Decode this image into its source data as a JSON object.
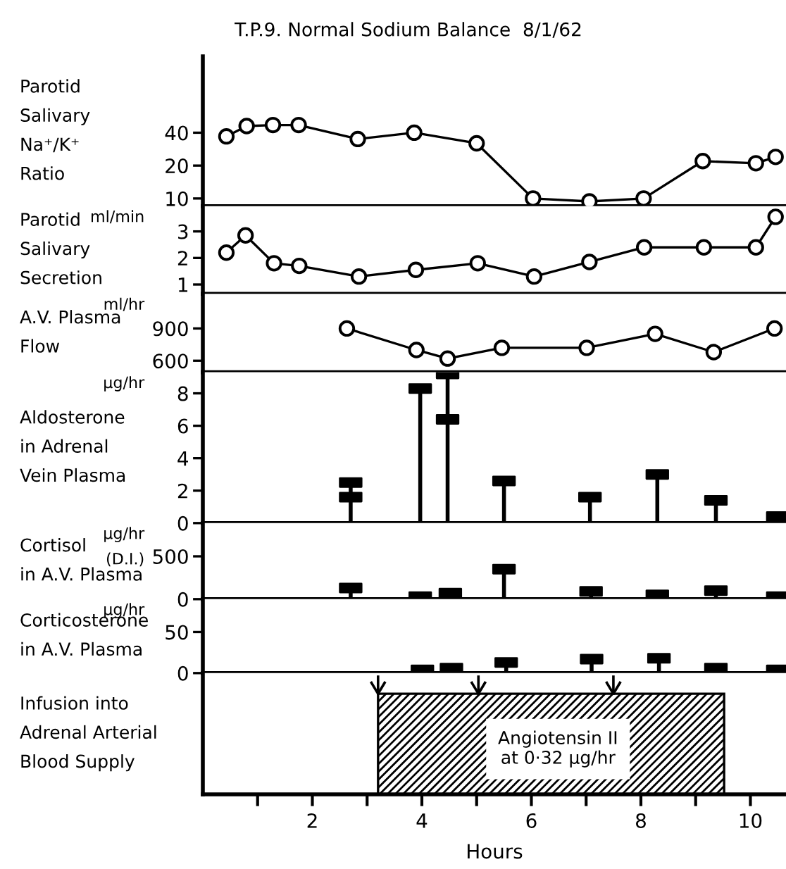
{
  "chart_data": [
    {
      "type": "line",
      "title": "T.P.9. Normal Sodium Balance  8/1/62",
      "ylabel": "Parotid\nSalivary\nNa⁺/K⁺\nRatio",
      "log": true,
      "xlim": [
        0,
        10.65
      ],
      "ylim": [
        8.5,
        200
      ],
      "yticks": [
        10,
        20,
        40
      ],
      "tick_labels": "y",
      "marker": "circle",
      "x": [
        0.43,
        0.8,
        1.28,
        1.75,
        2.83,
        3.86,
        5.0,
        6.03,
        7.06,
        8.05,
        9.13,
        10.1,
        10.46
      ],
      "series": [
        {
          "color": "#000000",
          "values": [
            37,
            46,
            47,
            47,
            35,
            40,
            32,
            10,
            9.4,
            10,
            22,
            21,
            24
          ]
        }
      ]
    },
    {
      "type": "line",
      "ylabel": "Parotid\nSalivary\nSecretion",
      "annotations": [
        "ml/min"
      ],
      "xlim": [
        0,
        10.65
      ],
      "ylim": [
        0.65,
        3.95
      ],
      "yticks": [
        1,
        2,
        3
      ],
      "tick_labels": "y",
      "marker": "circle",
      "x": [
        0.43,
        0.78,
        1.3,
        1.76,
        2.85,
        3.89,
        5.02,
        6.05,
        7.06,
        8.06,
        9.15,
        10.1,
        10.46
      ],
      "series": [
        {
          "color": "#000000",
          "values": [
            2.2,
            2.85,
            1.8,
            1.7,
            1.3,
            1.55,
            1.8,
            1.3,
            1.85,
            2.4,
            2.4,
            2.4,
            3.55
          ]
        }
      ]
    },
    {
      "type": "line",
      "ylabel": "A.V. Plasma\nFlow",
      "annotations": [
        "ml/hr"
      ],
      "xlim": [
        0,
        10.65
      ],
      "ylim": [
        493,
        1222
      ],
      "yticks": [
        600,
        900
      ],
      "tick_labels": "y",
      "marker": "circle",
      "x": [
        2.63,
        3.9,
        4.47,
        5.46,
        7.01,
        8.26,
        9.33,
        10.44
      ],
      "series": [
        {
          "color": "#000000",
          "values": [
            900,
            700,
            620,
            720,
            720,
            850,
            680,
            900
          ]
        }
      ]
    },
    {
      "type": "lollipop",
      "ylabel": "Aldosterone\nin Adrenal\nVein Plasma",
      "annotations": [
        "µg/hr"
      ],
      "xlim": [
        0,
        10.65
      ],
      "ylim": [
        0,
        9.3
      ],
      "yticks": [
        0,
        2,
        4,
        6,
        8
      ],
      "tick_labels": "y",
      "marker": "square",
      "x": [
        2.7,
        3.97,
        4.47,
        5.5,
        7.07,
        8.3,
        9.37,
        10.5
      ],
      "series": [
        {
          "color": "#000000",
          "values": [
            2.5,
            8.3,
            9.2,
            2.6,
            1.6,
            3.0,
            1.4,
            0.4
          ]
        },
        {
          "color": "#000000",
          "values": [
            1.6,
            null,
            6.4,
            null,
            null,
            null,
            null,
            null
          ]
        }
      ]
    },
    {
      "type": "lollipop",
      "ylabel": "Cortisol\nin A.V. Plasma",
      "annotations": [
        "µg/hr",
        "(D.I.)"
      ],
      "xlim": [
        0,
        10.65
      ],
      "ylim": [
        0,
        888
      ],
      "yticks": [
        0,
        500
      ],
      "tick_labels": "y",
      "marker": "square",
      "x": [
        2.7,
        3.97,
        4.52,
        5.5,
        7.09,
        8.3,
        9.37,
        10.5
      ],
      "series": [
        {
          "color": "#000000",
          "values": [
            130,
            30,
            70,
            350,
            90,
            50,
            100,
            30
          ]
        }
      ]
    },
    {
      "type": "lollipop",
      "ylabel": "Corticosterone\nin A.V. Plasma",
      "annotations": [
        "µg/hr"
      ],
      "xlim": [
        0,
        10.65
      ],
      "ylim": [
        0,
        90
      ],
      "yticks": [
        0,
        50
      ],
      "tick_labels": "y",
      "marker": "square",
      "x": [
        4.01,
        4.54,
        5.54,
        7.1,
        8.33,
        9.37,
        10.5
      ],
      "series": [
        {
          "color": "#000000",
          "values": [
            4,
            6,
            13,
            17,
            18,
            6,
            4
          ]
        }
      ]
    },
    {
      "type": "bar",
      "orientation": "horizontal",
      "categories": [
        null
      ],
      "ylabel": "Infusion into\nAdrenal Arterial\nBlood Supply",
      "xlabel": "Hours",
      "xlim": [
        0,
        10.65
      ],
      "xticks": [
        {
          "value": 1,
          "label": null
        },
        2,
        {
          "value": 3,
          "label": null
        },
        4,
        {
          "value": 5,
          "label": null
        },
        6,
        {
          "value": 7,
          "label": null
        },
        8,
        {
          "value": 9,
          "label": null
        },
        10
      ],
      "tick_labels": "x",
      "series": [
        {
          "color": "#000000",
          "base": [
            3.2
          ],
          "values": [
            6.32
          ]
        }
      ],
      "annotations": [
        "Angiotensin II\nat 0·32 µg/hr"
      ]
    }
  ]
}
